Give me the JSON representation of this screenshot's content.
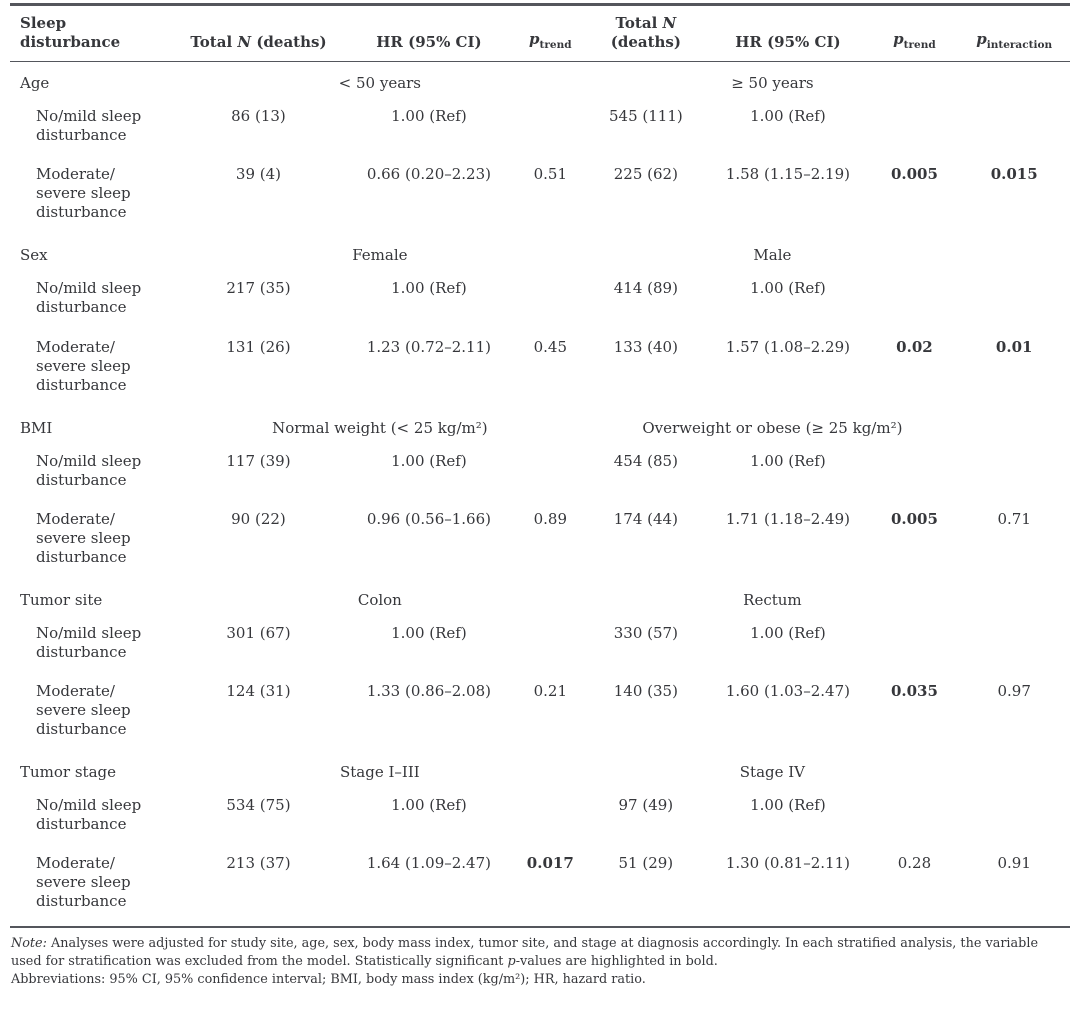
{
  "header": {
    "sleep_disturbance": "Sleep\ndisturbance",
    "total": "Total",
    "n": "N",
    "deaths": "(deaths)",
    "hr": "HR (95% CI)",
    "p": "p",
    "trend": "trend",
    "interaction": "interaction"
  },
  "sections": [
    {
      "label": "Age",
      "group1": "< 50 years",
      "group2": "≥ 50 years",
      "rows": [
        {
          "label": "No/mild sleep\ndisturbance",
          "cells": [
            {
              "t": "86 (13)"
            },
            {
              "t": "1.00 (Ref)"
            },
            {
              "t": ""
            },
            {
              "t": "545 (111)"
            },
            {
              "t": "1.00 (Ref)"
            },
            {
              "t": ""
            },
            {
              "t": ""
            }
          ]
        },
        {
          "label": "Moderate/\nsevere sleep\ndisturbance",
          "cells": [
            {
              "t": "39 (4)"
            },
            {
              "t": "0.66 (0.20–2.23)"
            },
            {
              "t": "0.51"
            },
            {
              "t": "225 (62)"
            },
            {
              "t": "1.58 (1.15–2.19)"
            },
            {
              "t": "0.005",
              "b": true
            },
            {
              "t": "0.015",
              "b": true
            }
          ]
        }
      ]
    },
    {
      "label": "Sex",
      "group1": "Female",
      "group2": "Male",
      "rows": [
        {
          "label": "No/mild sleep\ndisturbance",
          "cells": [
            {
              "t": "217 (35)"
            },
            {
              "t": "1.00 (Ref)"
            },
            {
              "t": ""
            },
            {
              "t": "414 (89)"
            },
            {
              "t": "1.00 (Ref)"
            },
            {
              "t": ""
            },
            {
              "t": ""
            }
          ]
        },
        {
          "label": "Moderate/\nsevere sleep\ndisturbance",
          "cells": [
            {
              "t": "131 (26)"
            },
            {
              "t": "1.23 (0.72–2.11)"
            },
            {
              "t": "0.45"
            },
            {
              "t": "133 (40)"
            },
            {
              "t": "1.57 (1.08–2.29)"
            },
            {
              "t": "0.02",
              "b": true
            },
            {
              "t": "0.01",
              "b": true
            }
          ]
        }
      ]
    },
    {
      "label": "BMI",
      "group1": "Normal weight (< 25 kg/m²)",
      "group2": "Overweight or obese (≥ 25 kg/m²)",
      "rows": [
        {
          "label": "No/mild sleep\ndisturbance",
          "cells": [
            {
              "t": "117 (39)"
            },
            {
              "t": "1.00 (Ref)"
            },
            {
              "t": ""
            },
            {
              "t": "454 (85)"
            },
            {
              "t": "1.00 (Ref)"
            },
            {
              "t": ""
            },
            {
              "t": ""
            }
          ]
        },
        {
          "label": "Moderate/\nsevere sleep\ndisturbance",
          "cells": [
            {
              "t": "90 (22)"
            },
            {
              "t": "0.96 (0.56–1.66)"
            },
            {
              "t": "0.89"
            },
            {
              "t": "174 (44)"
            },
            {
              "t": "1.71 (1.18–2.49)"
            },
            {
              "t": "0.005",
              "b": true
            },
            {
              "t": "0.71"
            }
          ]
        }
      ]
    },
    {
      "label": "Tumor site",
      "group1": "Colon",
      "group2": "Rectum",
      "rows": [
        {
          "label": "No/mild sleep\ndisturbance",
          "cells": [
            {
              "t": "301 (67)"
            },
            {
              "t": "1.00 (Ref)"
            },
            {
              "t": ""
            },
            {
              "t": "330 (57)"
            },
            {
              "t": "1.00 (Ref)"
            },
            {
              "t": ""
            },
            {
              "t": ""
            }
          ]
        },
        {
          "label": "Moderate/\nsevere sleep\ndisturbance",
          "cells": [
            {
              "t": "124 (31)"
            },
            {
              "t": "1.33 (0.86–2.08)"
            },
            {
              "t": "0.21"
            },
            {
              "t": "140 (35)"
            },
            {
              "t": "1.60 (1.03–2.47)"
            },
            {
              "t": "0.035",
              "b": true
            },
            {
              "t": "0.97"
            }
          ]
        }
      ]
    },
    {
      "label": "Tumor stage",
      "group1": "Stage I–III",
      "group2": "Stage IV",
      "rows": [
        {
          "label": "No/mild sleep\ndisturbance",
          "cells": [
            {
              "t": "534 (75)"
            },
            {
              "t": "1.00 (Ref)"
            },
            {
              "t": ""
            },
            {
              "t": "97 (49)"
            },
            {
              "t": "1.00 (Ref)"
            },
            {
              "t": ""
            },
            {
              "t": ""
            }
          ]
        },
        {
          "label": "Moderate/\nsevere sleep\ndisturbance",
          "cells": [
            {
              "t": "213 (37)"
            },
            {
              "t": "1.64 (1.09–2.47)"
            },
            {
              "t": "0.017",
              "b": true
            },
            {
              "t": "51 (29)"
            },
            {
              "t": "1.30 (0.81–2.11)"
            },
            {
              "t": "0.28"
            },
            {
              "t": "0.91"
            }
          ]
        }
      ]
    }
  ],
  "footnotes": {
    "note_label": "Note:",
    "note_text1": " Analyses were adjusted for study site, age, sex, body mass index, tumor site, and stage at diagnosis accordingly. In each stratified analysis, the variable used for stratification was excluded from the model. Statistically significant ",
    "p_italic": "p",
    "note_text2": "-values are highlighted in bold.",
    "abbreviations": "Abbreviations: 95% CI, 95% confidence interval; BMI, body mass index (kg/m²); HR, hazard ratio."
  }
}
